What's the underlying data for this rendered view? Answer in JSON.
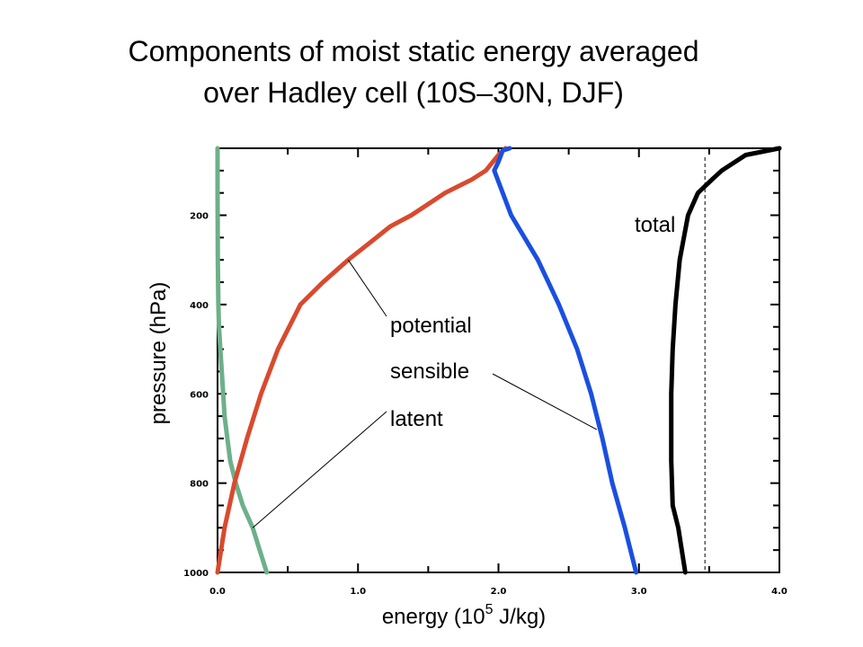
{
  "title_line1": "Components of moist static energy averaged",
  "title_line2": "over Hadley cell (10S–30N, DJF)",
  "chart_data": {
    "type": "line",
    "xlabel_pre": "energy (10",
    "xlabel_sup": "5",
    "xlabel_post": " J/kg)",
    "ylabel": "pressure (hPa)",
    "xlim": [
      0.0,
      4.0
    ],
    "ylim": [
      1000,
      50
    ],
    "y_inverted": true,
    "x_ticks": [
      "0.0",
      "1.0",
      "2.0",
      "3.0",
      "4.0"
    ],
    "y_ticks": [
      "200",
      "400",
      "600",
      "800",
      "1000"
    ],
    "grid": false,
    "series": [
      {
        "name": "latent",
        "color": "#6db08a",
        "points": [
          [
            0.35,
            1000
          ],
          [
            0.3,
            950
          ],
          [
            0.25,
            900
          ],
          [
            0.18,
            850
          ],
          [
            0.13,
            800
          ],
          [
            0.09,
            750
          ],
          [
            0.07,
            700
          ],
          [
            0.05,
            650
          ],
          [
            0.04,
            600
          ],
          [
            0.03,
            550
          ],
          [
            0.02,
            500
          ],
          [
            0.01,
            450
          ],
          [
            0.006,
            400
          ],
          [
            0.004,
            350
          ],
          [
            0.002,
            300
          ],
          [
            0.001,
            250
          ],
          [
            0.0005,
            200
          ],
          [
            0.0,
            150
          ],
          [
            0.0,
            100
          ],
          [
            0.0,
            50
          ]
        ]
      },
      {
        "name": "potential",
        "color": "#d94a2e",
        "points": [
          [
            0.0,
            1000
          ],
          [
            0.05,
            900
          ],
          [
            0.12,
            800
          ],
          [
            0.21,
            700
          ],
          [
            0.31,
            600
          ],
          [
            0.43,
            500
          ],
          [
            0.59,
            400
          ],
          [
            0.75,
            350
          ],
          [
            0.93,
            300
          ],
          [
            1.13,
            250
          ],
          [
            1.23,
            225
          ],
          [
            1.38,
            200
          ],
          [
            1.62,
            150
          ],
          [
            1.81,
            120
          ],
          [
            1.91,
            100
          ],
          [
            2.0,
            65
          ],
          [
            2.05,
            50
          ]
        ]
      },
      {
        "name": "sensible",
        "color": "#1a4fe0",
        "points": [
          [
            2.98,
            1000
          ],
          [
            2.9,
            900
          ],
          [
            2.81,
            800
          ],
          [
            2.74,
            700
          ],
          [
            2.66,
            600
          ],
          [
            2.56,
            500
          ],
          [
            2.43,
            400
          ],
          [
            2.28,
            300
          ],
          [
            2.09,
            200
          ],
          [
            1.97,
            100
          ],
          [
            2.0,
            80
          ],
          [
            2.03,
            55
          ],
          [
            2.08,
            50
          ]
        ]
      },
      {
        "name": "total",
        "color": "#000000",
        "points": [
          [
            3.33,
            1000
          ],
          [
            3.28,
            900
          ],
          [
            3.24,
            850
          ],
          [
            3.23,
            750
          ],
          [
            3.23,
            600
          ],
          [
            3.24,
            500
          ],
          [
            3.26,
            400
          ],
          [
            3.29,
            300
          ],
          [
            3.35,
            200
          ],
          [
            3.42,
            150
          ],
          [
            3.52,
            120
          ],
          [
            3.59,
            100
          ],
          [
            3.76,
            65
          ],
          [
            3.92,
            55
          ],
          [
            4.0,
            50
          ]
        ]
      }
    ],
    "reference_line": {
      "x": 3.47,
      "style": "dashed"
    },
    "annotations": [
      {
        "text": "total",
        "series": "total"
      },
      {
        "text": "potential",
        "series": "potential",
        "target": [
          0.93,
          300
        ]
      },
      {
        "text": "sensible",
        "series": "sensible",
        "target": [
          2.7,
          680
        ]
      },
      {
        "text": "latent",
        "series": "latent",
        "target": [
          0.25,
          900
        ]
      }
    ]
  }
}
